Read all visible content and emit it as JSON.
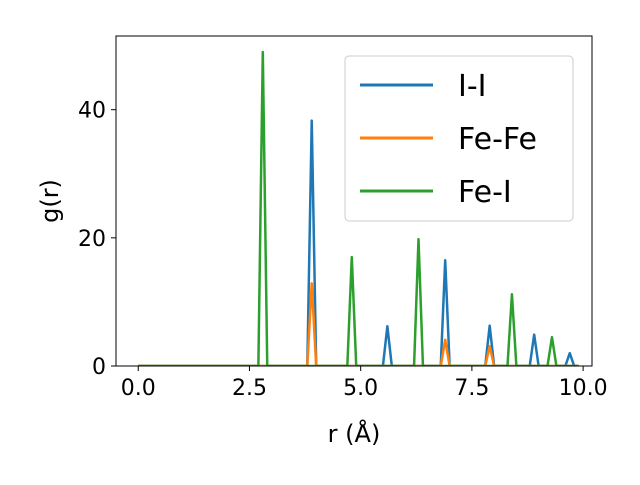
{
  "chart_data": {
    "type": "line",
    "title": "",
    "xlabel": "r (Å)",
    "ylabel": "g(r)",
    "xlim": [
      -0.5,
      10.2
    ],
    "ylim": [
      0,
      51.5
    ],
    "xticks": [
      0.0,
      2.5,
      5.0,
      7.5,
      10.0
    ],
    "xtick_labels": [
      "0.0",
      "2.5",
      "5.0",
      "7.5",
      "10.0"
    ],
    "yticks": [
      0,
      20,
      40
    ],
    "ytick_labels": [
      "0",
      "20",
      "40"
    ],
    "grid": false,
    "legend_position": "top-right",
    "series": [
      {
        "name": "I-I",
        "color": "#1f77b4",
        "x": [
          0.0,
          3.8,
          3.9,
          4.0,
          5.5,
          5.6,
          5.7,
          6.8,
          6.9,
          7.0,
          7.8,
          7.9,
          8.0,
          8.8,
          8.9,
          9.0,
          9.6,
          9.7,
          9.8,
          9.9
        ],
        "y": [
          0,
          0,
          38.3,
          0,
          0,
          6.2,
          0,
          0,
          16.5,
          0,
          0,
          6.3,
          0,
          0,
          4.9,
          0,
          0,
          2.0,
          0,
          0
        ]
      },
      {
        "name": "Fe-Fe",
        "color": "#ff7f0e",
        "x": [
          0.0,
          3.8,
          3.9,
          4.0,
          6.8,
          6.9,
          7.0,
          7.8,
          7.9,
          8.0,
          9.9
        ],
        "y": [
          0,
          0,
          12.9,
          0,
          0,
          4.1,
          0,
          0,
          3.1,
          0,
          0
        ]
      },
      {
        "name": "Fe-I",
        "color": "#2ca02c",
        "x": [
          0.0,
          2.7,
          2.8,
          2.9,
          4.7,
          4.8,
          4.9,
          6.2,
          6.3,
          6.4,
          8.3,
          8.4,
          8.5,
          9.2,
          9.3,
          9.4,
          9.9
        ],
        "y": [
          0,
          0,
          49.0,
          0,
          0,
          17.0,
          0,
          0,
          19.8,
          0,
          0,
          11.2,
          0,
          0,
          4.5,
          0,
          0
        ]
      }
    ]
  }
}
